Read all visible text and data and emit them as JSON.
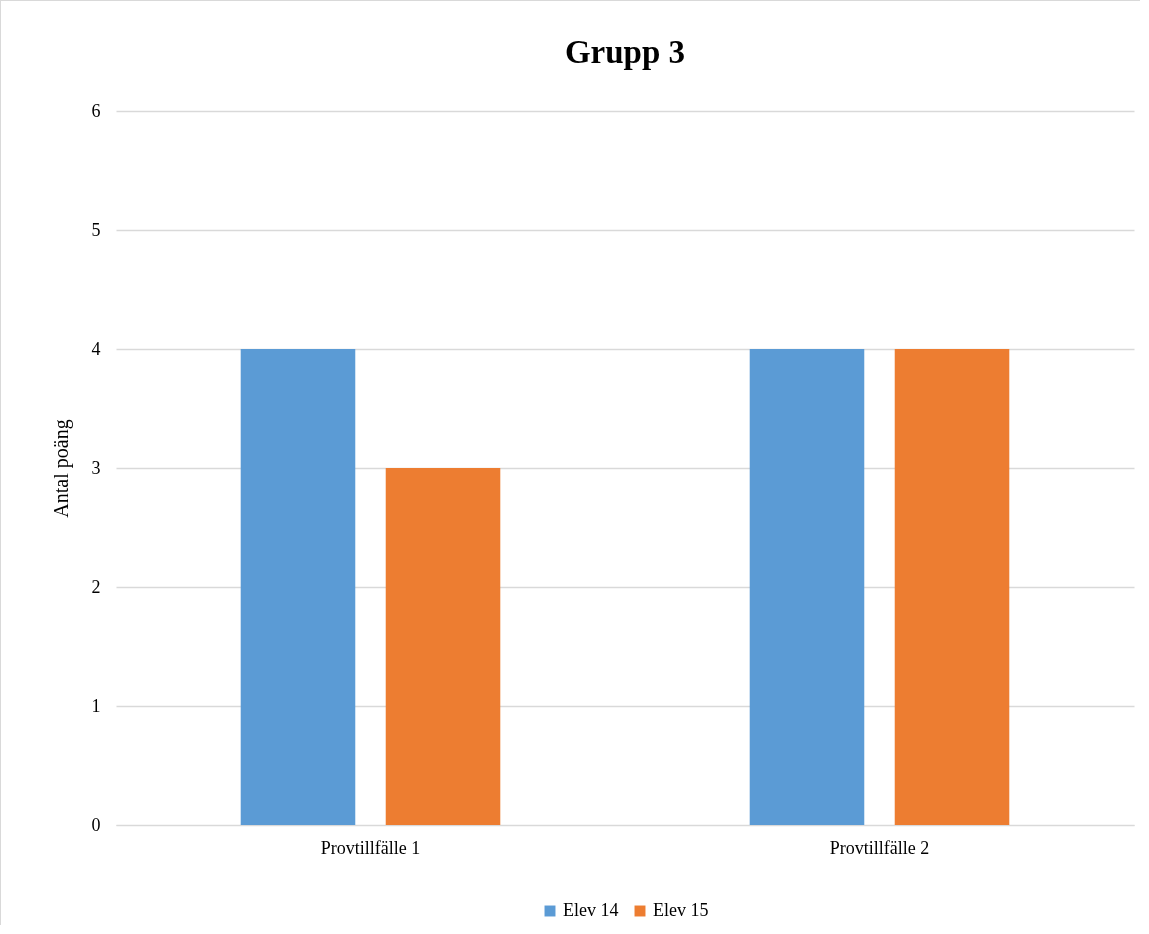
{
  "chart_data": {
    "type": "bar",
    "title": "Grupp 3",
    "ylabel": "Antal poäng",
    "categories": [
      "Provtillfälle 1",
      "Provtillfälle 2"
    ],
    "series": [
      {
        "name": "Elev 14",
        "color": "#5b9bd5",
        "values": [
          4,
          4
        ]
      },
      {
        "name": "Elev 15",
        "color": "#ed7d31",
        "values": [
          3,
          4
        ]
      }
    ],
    "ylim": [
      0,
      6
    ],
    "yticks": [
      0,
      1,
      2,
      3,
      4,
      5,
      6
    ],
    "grid": "y",
    "legend": "bottom"
  }
}
